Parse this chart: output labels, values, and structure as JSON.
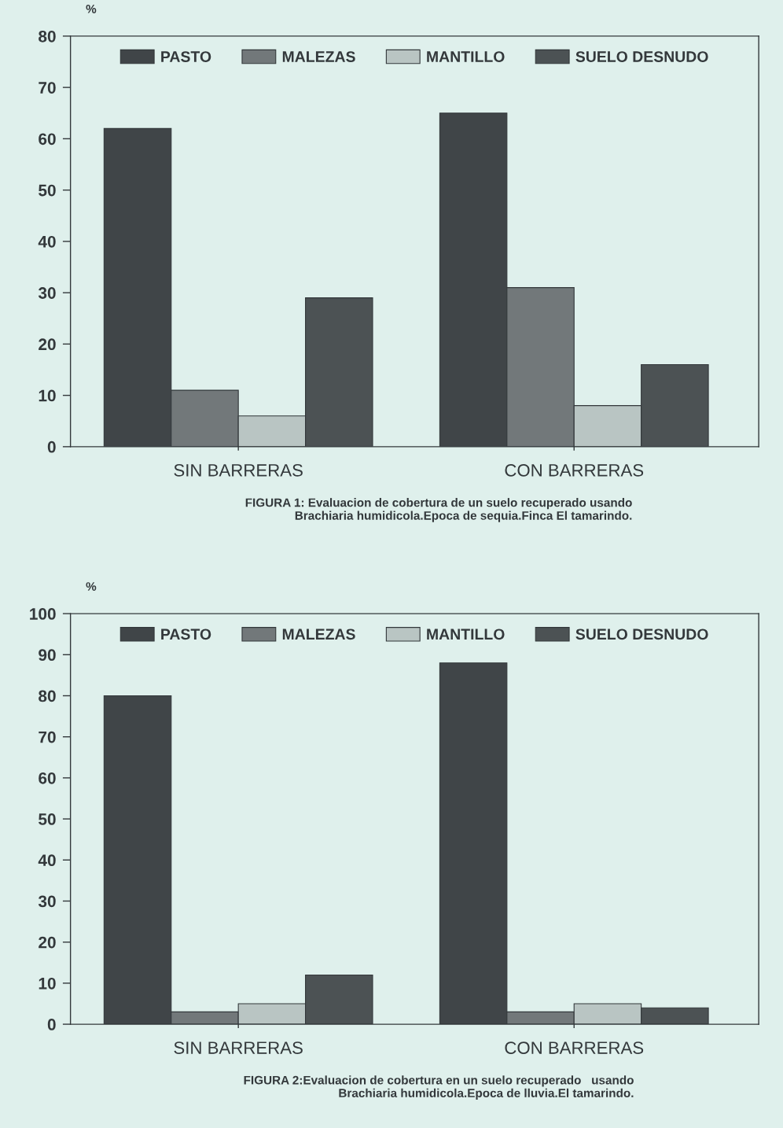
{
  "chart_data": [
    {
      "type": "bar",
      "categories": [
        "SIN BARRERAS",
        "CON BARRERAS"
      ],
      "series": [
        {
          "name": "PASTO",
          "color": "#404548",
          "values": [
            62,
            65
          ]
        },
        {
          "name": "MALEZAS",
          "color": "#72787a",
          "values": [
            11,
            31
          ]
        },
        {
          "name": "MANTILLO",
          "color": "#b9c5c3",
          "values": [
            6,
            8
          ]
        },
        {
          "name": "SUELO DESNUDO",
          "color": "#4c5254",
          "values": [
            29,
            16
          ]
        }
      ],
      "ylabel": "%",
      "ylim": [
        0,
        80
      ],
      "yticks": [
        0,
        10,
        20,
        30,
        40,
        50,
        60,
        70,
        80
      ],
      "legend": "top",
      "annotations": [
        "FIGURA 1: Evaluacion de cobertura de un suelo recuperado usando\nBrachiaria humidicola.Epoca de sequia.Finca El tamarindo."
      ]
    },
    {
      "type": "bar",
      "categories": [
        "SIN BARRERAS",
        "CON BARRERAS"
      ],
      "series": [
        {
          "name": "PASTO",
          "color": "#404548",
          "values": [
            80,
            88
          ]
        },
        {
          "name": "MALEZAS",
          "color": "#72787a",
          "values": [
            3,
            3
          ]
        },
        {
          "name": "MANTILLO",
          "color": "#b9c5c3",
          "values": [
            5,
            5
          ]
        },
        {
          "name": "SUELO DESNUDO",
          "color": "#4c5254",
          "values": [
            12,
            4
          ]
        }
      ],
      "ylabel": "%",
      "ylim": [
        0,
        100
      ],
      "yticks": [
        0,
        10,
        20,
        30,
        40,
        50,
        60,
        70,
        80,
        90,
        100
      ],
      "legend": "top",
      "annotations": [
        "FIGURA 2:Evaluacion de cobertura en un suelo recuperado   usando\nBrachiaria humidicola.Epoca de lluvia.El tamarindo."
      ]
    }
  ]
}
